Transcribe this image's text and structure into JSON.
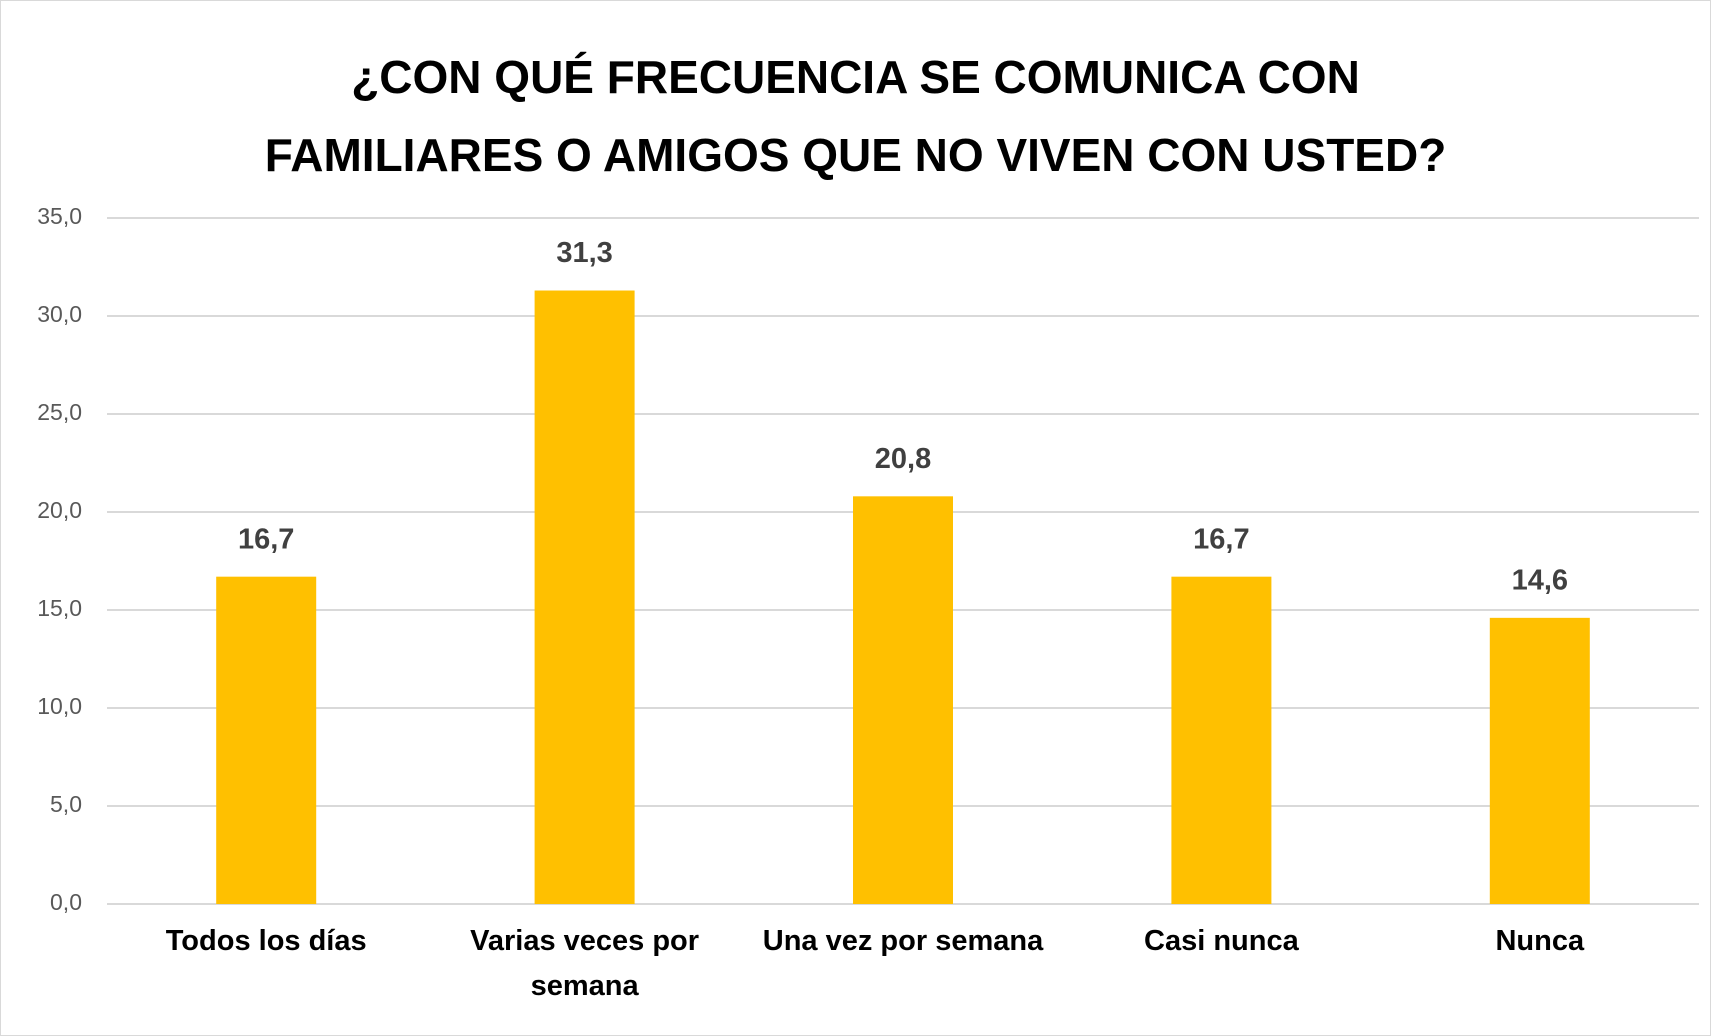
{
  "chart_data": {
    "type": "bar",
    "title": "¿CON QUÉ FRECUENCIA SE COMUNICA CON\nFAMILIARES O AMIGOS QUE NO VIVEN CON USTED?",
    "categories": [
      "Todos los días",
      "Varias veces por semana",
      "Una vez por semana",
      "Casi nunca",
      "Nunca"
    ],
    "values": [
      16.7,
      31.3,
      20.8,
      16.7,
      14.6
    ],
    "value_labels": [
      "16,7",
      "31,3",
      "20,8",
      "16,7",
      "14,6"
    ],
    "color": "#ffc000",
    "ylim": [
      0,
      35
    ],
    "yticks": [
      {
        "value": 0,
        "label": "0,0"
      },
      {
        "value": 5,
        "label": "5,0"
      },
      {
        "value": 10,
        "label": "10,0"
      },
      {
        "value": 15,
        "label": "15,0"
      },
      {
        "value": 20,
        "label": "20,0"
      },
      {
        "value": 25,
        "label": "25,0"
      },
      {
        "value": 30,
        "label": "30,0"
      },
      {
        "value": 35,
        "label": "35,0"
      }
    ],
    "grid": true
  }
}
